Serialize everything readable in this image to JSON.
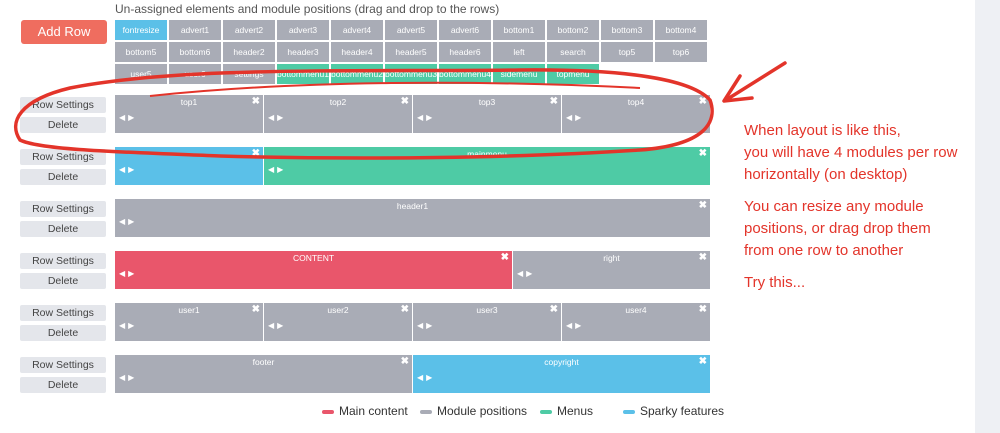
{
  "heading": "Un-assigned elements and module positions (drag and drop to the rows)",
  "add_row_label": "Add Row",
  "colors": {
    "main_content": "#e9566b",
    "module_positions": "#a9acb6",
    "menus": "#4ecba5",
    "sparky_features": "#5bc0e8",
    "annotation": "#e3342a"
  },
  "pool": [
    {
      "label": "fontresize",
      "type": "blue"
    },
    {
      "label": "advert1",
      "type": "gray"
    },
    {
      "label": "advert2",
      "type": "gray"
    },
    {
      "label": "advert3",
      "type": "gray"
    },
    {
      "label": "advert4",
      "type": "gray"
    },
    {
      "label": "advert5",
      "type": "gray"
    },
    {
      "label": "advert6",
      "type": "gray"
    },
    {
      "label": "bottom1",
      "type": "gray"
    },
    {
      "label": "bottom2",
      "type": "gray"
    },
    {
      "label": "bottom3",
      "type": "gray"
    },
    {
      "label": "bottom4",
      "type": "gray"
    },
    {
      "label": "bottom5",
      "type": "gray"
    },
    {
      "label": "bottom6",
      "type": "gray"
    },
    {
      "label": "header2",
      "type": "gray"
    },
    {
      "label": "header3",
      "type": "gray"
    },
    {
      "label": "header4",
      "type": "gray"
    },
    {
      "label": "header5",
      "type": "gray"
    },
    {
      "label": "header6",
      "type": "gray"
    },
    {
      "label": "left",
      "type": "gray"
    },
    {
      "label": "search",
      "type": "gray"
    },
    {
      "label": "top5",
      "type": "gray"
    },
    {
      "label": "top6",
      "type": "gray"
    },
    {
      "label": "user5",
      "type": "gray"
    },
    {
      "label": "user6",
      "type": "gray"
    },
    {
      "label": "settings",
      "type": "gray"
    },
    {
      "label": "bottommenu1",
      "type": "green"
    },
    {
      "label": "bottommenu2",
      "type": "green"
    },
    {
      "label": "bottommenu3",
      "type": "green"
    },
    {
      "label": "bottommenu4",
      "type": "green"
    },
    {
      "label": "sidemenu",
      "type": "green"
    },
    {
      "label": "topmenu",
      "type": "green"
    }
  ],
  "row_settings_label": "Row Settings",
  "delete_label": "Delete",
  "rows": [
    {
      "modules": [
        {
          "label": "top1",
          "type": "gray",
          "span": 0.25
        },
        {
          "label": "top2",
          "type": "gray",
          "span": 0.25
        },
        {
          "label": "top3",
          "type": "gray",
          "span": 0.25
        },
        {
          "label": "top4",
          "type": "gray",
          "span": 0.25
        }
      ]
    },
    {
      "modules": [
        {
          "label": "",
          "type": "blue",
          "span": 0.25
        },
        {
          "label": "mainmenu",
          "type": "green",
          "span": 0.75
        }
      ]
    },
    {
      "modules": [
        {
          "label": "header1",
          "type": "gray",
          "span": 1.0
        }
      ]
    },
    {
      "modules": [
        {
          "label": "CONTENT",
          "type": "red",
          "span": 0.667
        },
        {
          "label": "right",
          "type": "gray",
          "span": 0.333
        }
      ]
    },
    {
      "modules": [
        {
          "label": "user1",
          "type": "gray",
          "span": 0.25
        },
        {
          "label": "user2",
          "type": "gray",
          "span": 0.25
        },
        {
          "label": "user3",
          "type": "gray",
          "span": 0.25
        },
        {
          "label": "user4",
          "type": "gray",
          "span": 0.25
        }
      ]
    },
    {
      "modules": [
        {
          "label": "footer",
          "type": "gray",
          "span": 0.5
        },
        {
          "label": "copyright",
          "type": "blue",
          "span": 0.5
        }
      ]
    }
  ],
  "legend": [
    {
      "label": "Main content",
      "type": "red"
    },
    {
      "label": "Module positions",
      "type": "gray"
    },
    {
      "label": "Menus",
      "type": "green"
    },
    {
      "label": "Sparky features",
      "type": "blue"
    }
  ],
  "notes": [
    "When layout is like this,",
    "you will have 4 modules per row",
    "horizontally (on desktop)",
    "",
    "You can resize any module",
    "positions, or drag drop them",
    "from one row to another",
    "",
    "Try this..."
  ]
}
